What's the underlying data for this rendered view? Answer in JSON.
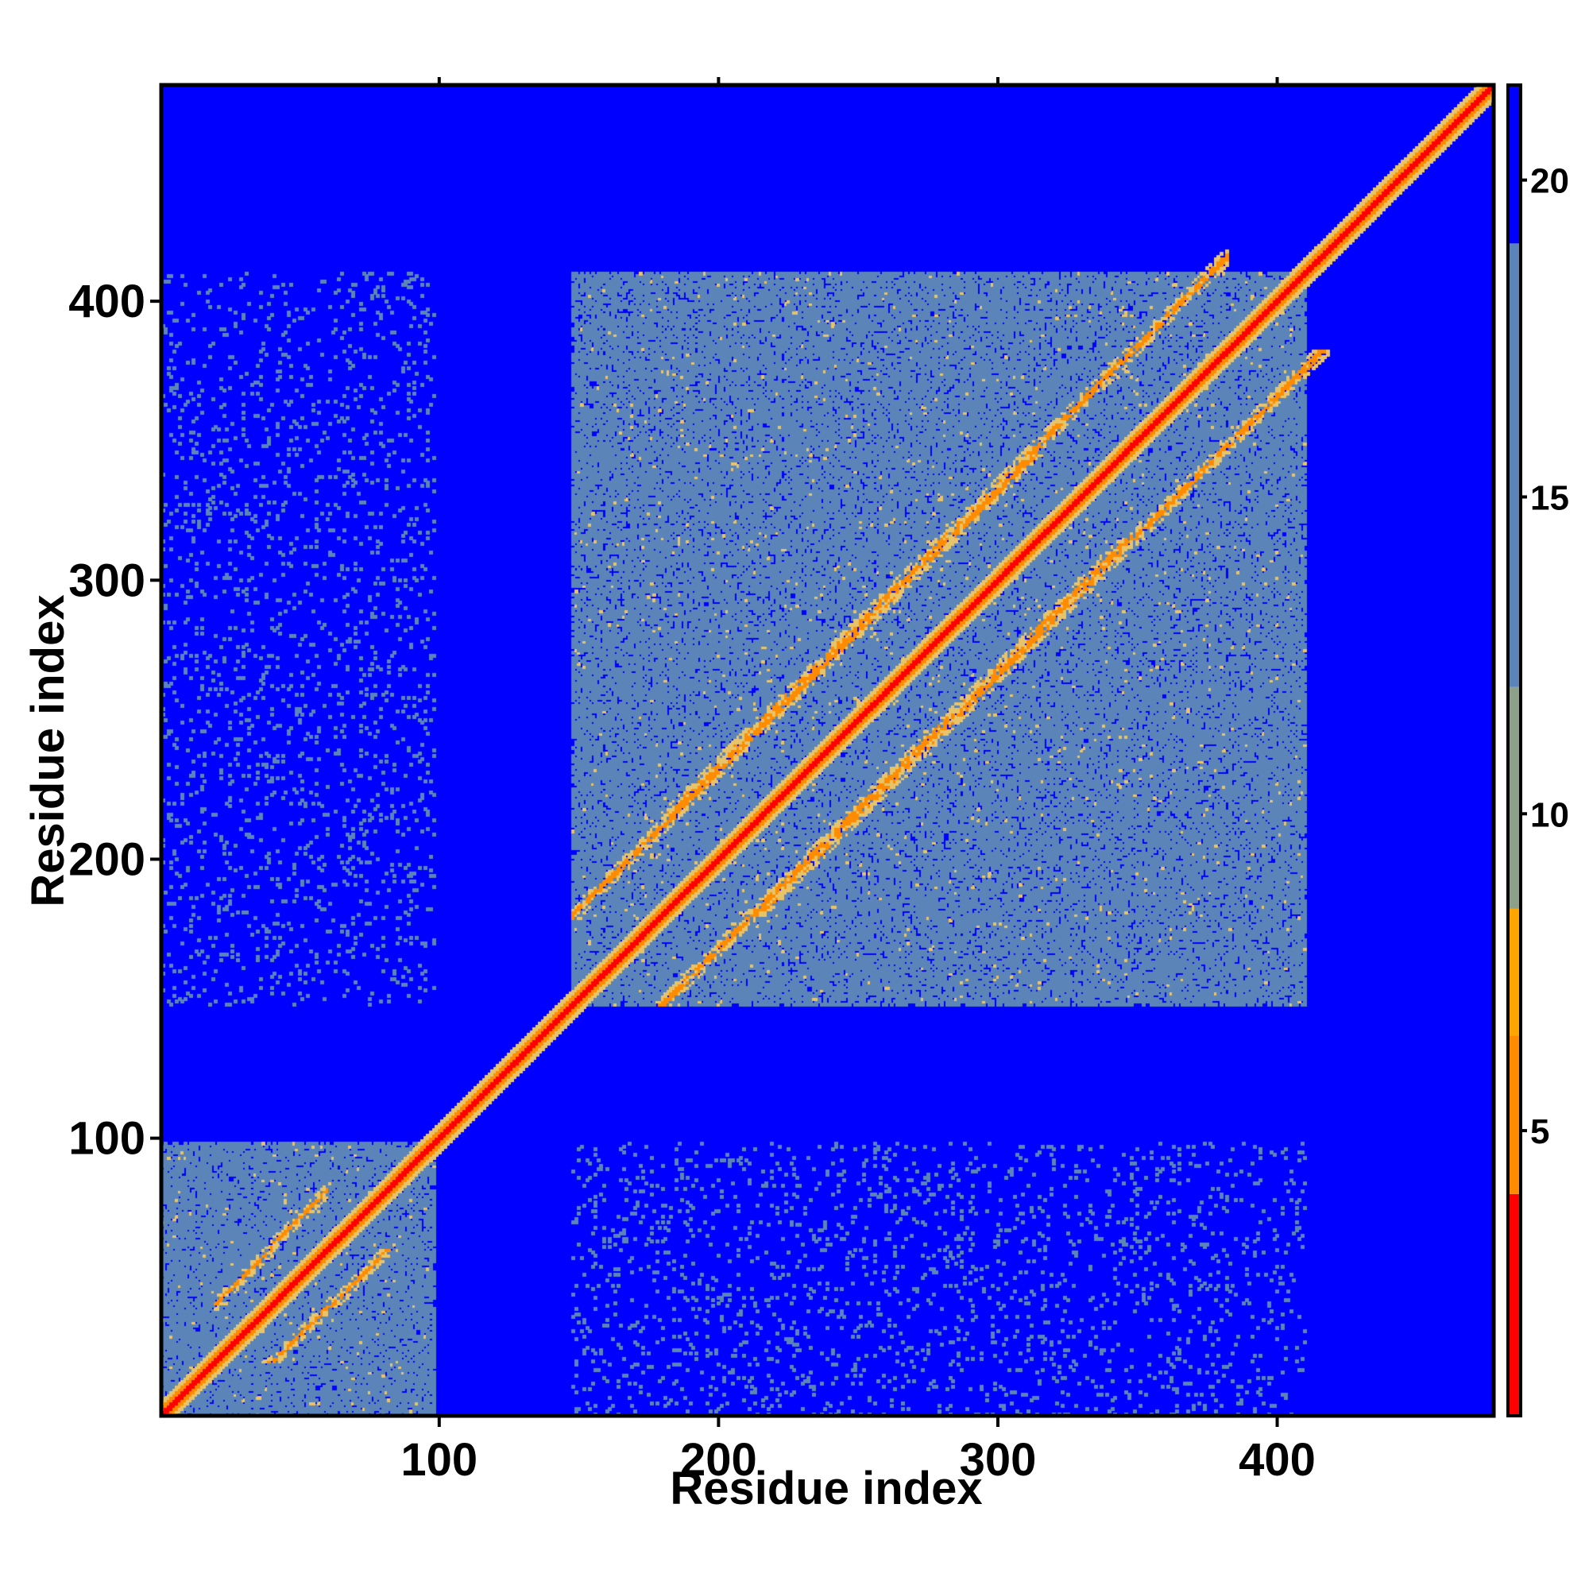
{
  "chart_data": {
    "type": "heatmap",
    "title": "",
    "xlabel": "Residue index",
    "ylabel": "Residue index",
    "xlim": [
      1,
      477
    ],
    "ylim": [
      1,
      477
    ],
    "x_ticks": [
      100,
      200,
      300,
      400
    ],
    "y_ticks": [
      100,
      200,
      300,
      400
    ],
    "colorbar": {
      "ticks": [
        5,
        10,
        15,
        20
      ],
      "range": [
        0.5,
        21.5
      ],
      "orientation": "vertical",
      "placement": "right"
    },
    "palette": {
      "background": "#0000ff",
      "contact_halo": "#5b84b8",
      "near": "#e7c46a",
      "close": "#ff8c00",
      "diagonal": "#ff0000"
    },
    "domains": [
      {
        "start": 1,
        "end": 98
      },
      {
        "start": 148,
        "end": 410
      }
    ],
    "off_diagonal_bands": [
      {
        "i_start": 148,
        "i_end": 250,
        "j_start": 180,
        "j_end": 282
      },
      {
        "i_start": 180,
        "i_end": 282,
        "j_start": 214,
        "j_end": 316
      },
      {
        "i_start": 214,
        "i_end": 316,
        "j_start": 246,
        "j_end": 348
      },
      {
        "i_start": 246,
        "i_end": 348,
        "j_start": 280,
        "j_end": 382
      },
      {
        "i_start": 280,
        "i_end": 382,
        "j_start": 314,
        "j_end": 416
      },
      {
        "i_start": 20,
        "i_end": 60,
        "j_start": 40,
        "j_end": 82
      }
    ]
  }
}
